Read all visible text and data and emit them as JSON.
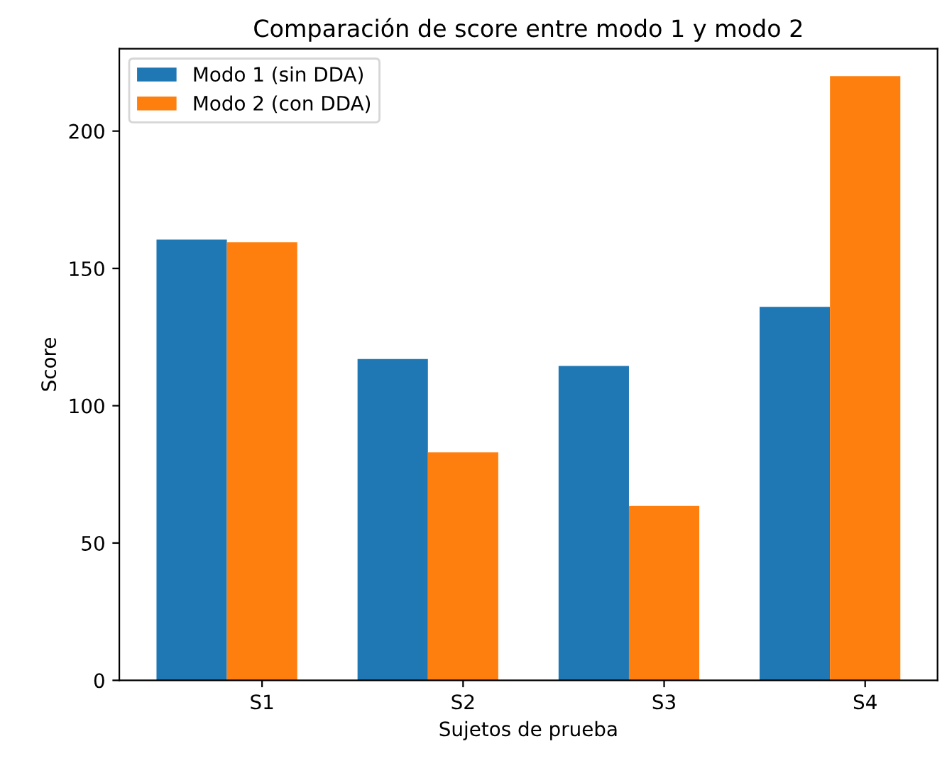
{
  "chart_data": {
    "type": "bar",
    "title": "Comparación de score entre modo 1 y modo 2",
    "xlabel": "Sujetos de prueba",
    "ylabel": "Score",
    "categories": [
      "S1",
      "S2",
      "S3",
      "S4"
    ],
    "series": [
      {
        "name": "Modo 1 (sin DDA)",
        "color": "#1f77b4",
        "values": [
          160.5,
          117,
          114.5,
          136
        ]
      },
      {
        "name": "Modo 2 (con DDA)",
        "color": "#ff7f0e",
        "values": [
          159.5,
          83,
          63.5,
          220
        ]
      }
    ],
    "ylim": [
      0,
      230
    ],
    "yticks": [
      0,
      50,
      100,
      150,
      200
    ],
    "grid": false,
    "legend": "top left"
  }
}
